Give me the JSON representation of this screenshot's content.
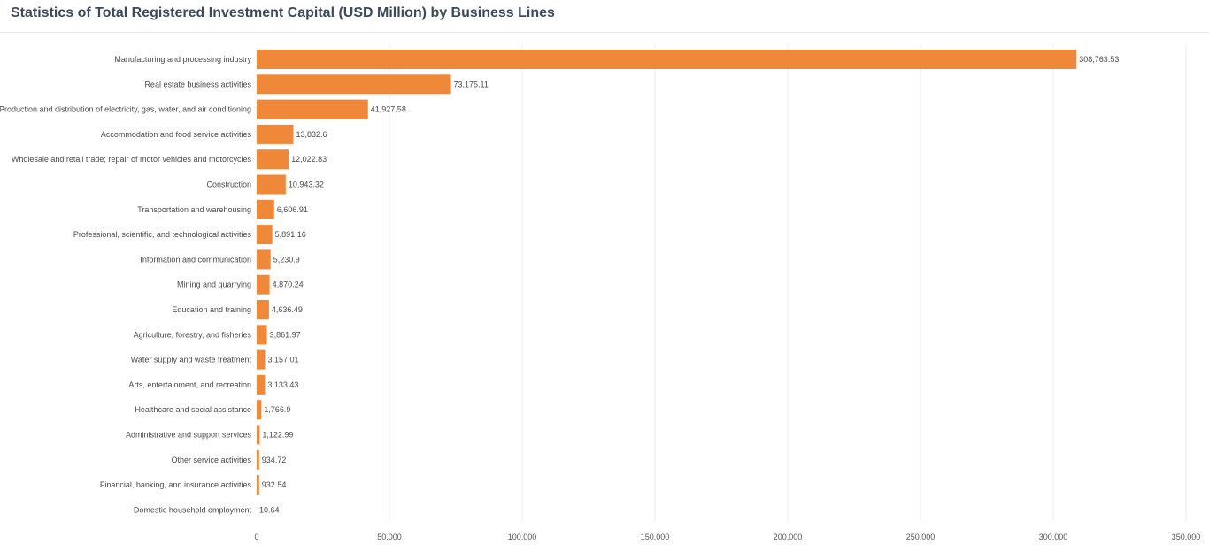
{
  "header": {
    "title": "Statistics of Total Registered Investment Capital (USD Million) by Business Lines"
  },
  "colors": {
    "bar": "#f0883a",
    "grid": "#ececec",
    "text": "#4a4a4a",
    "title": "#3d4a5c"
  },
  "chart_data": {
    "type": "bar",
    "orientation": "horizontal",
    "title": "Statistics of Total Registered Investment Capital (USD Million) by Business Lines",
    "xlabel": "",
    "ylabel": "",
    "xlim": [
      0,
      350000
    ],
    "grid": true,
    "legend": "none",
    "ticks": [
      0,
      50000,
      100000,
      150000,
      200000,
      250000,
      300000,
      350000
    ],
    "tick_labels": [
      "0",
      "50,000",
      "100,000",
      "150,000",
      "200,000",
      "250,000",
      "300,000",
      "350,000"
    ],
    "categories": [
      "Manufacturing and processing industry",
      "Real estate business activities",
      "Production and distribution of electricity, gas, water, and air conditioning",
      "Accommodation and food service activities",
      "Wholesale and retail trade; repair of motor vehicles and motorcycles",
      "Construction",
      "Transportation and warehousing",
      "Professional, scientific, and technological activities",
      "Information and communication",
      "Mining and quarrying",
      "Education and training",
      "Agriculture, forestry, and fisheries",
      "Water supply and waste treatment",
      "Arts, entertainment, and recreation",
      "Healthcare and social assistance",
      "Administrative and support services",
      "Other service activities",
      "Financial, banking, and insurance activities",
      "Domestic household employment"
    ],
    "values": [
      308763.53,
      73175.11,
      41927.58,
      13832.6,
      12022.83,
      10943.32,
      6606.91,
      5891.16,
      5230.9,
      4870.24,
      4636.49,
      3861.97,
      3157.01,
      3133.43,
      1766.9,
      1122.99,
      934.72,
      932.54,
      10.64
    ],
    "value_labels": [
      "308,763.53",
      "73,175.11",
      "41,927.58",
      "13,832.6",
      "12,022.83",
      "10,943.32",
      "6,606.91",
      "5,891.16",
      "5,230.9",
      "4,870.24",
      "4,636.49",
      "3,861.97",
      "3,157.01",
      "3,133.43",
      "1,766.9",
      "1,122.99",
      "934.72",
      "932.54",
      "10.64"
    ]
  }
}
